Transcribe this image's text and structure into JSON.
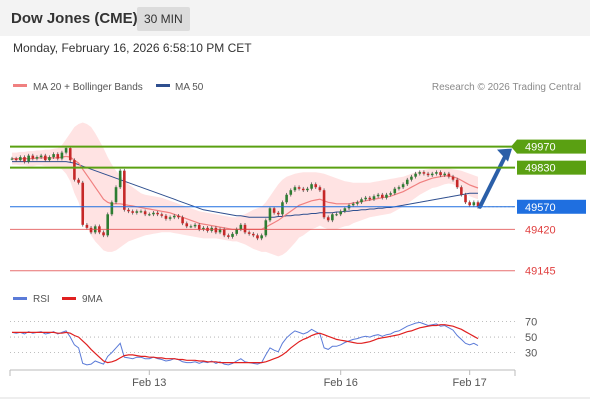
{
  "header": {
    "title": "Dow Jones (CME)",
    "timeframe": "30 MIN",
    "datetime": "Monday, February 16, 2026 6:58:10 PM CET"
  },
  "legend": {
    "ma20_label": "MA 20 + Bollinger Bands",
    "ma50_label": "MA 50",
    "copyright": "Research © 2026 Trading Central"
  },
  "rsi_legend": {
    "rsi_label": "RSI",
    "ma_label": "9MA"
  },
  "colors": {
    "ma20": "#f08080",
    "ma50": "#2f4f8f",
    "bollinger_fill": "#ffe0e0",
    "resistance": "#5aa012",
    "pivot": "#1f6fe0",
    "support": "#e04040",
    "candle_up": "#2e7d32",
    "candle_down": "#c62828",
    "rsi": "#5b7bd8",
    "rsi_ma": "#e02020",
    "arrow": "#2b5fa8"
  },
  "chart_data": [
    {
      "type": "line",
      "name": "price",
      "x_labels": [
        "Feb 13",
        "Feb 16",
        "Feb 17"
      ],
      "ylim": [
        49050,
        50180
      ],
      "levels": [
        {
          "value": 49970,
          "label": "49970",
          "kind": "resistance"
        },
        {
          "value": 49830,
          "label": "49830",
          "kind": "resistance"
        },
        {
          "value": 49570,
          "label": "49570",
          "kind": "pivot"
        },
        {
          "value": 49420,
          "label": "49420",
          "kind": "support"
        },
        {
          "value": 49145,
          "label": "49145",
          "kind": "support"
        }
      ],
      "close": [
        49890,
        49880,
        49900,
        49870,
        49910,
        49890,
        49900,
        49910,
        49880,
        49900,
        49920,
        49890,
        49930,
        49960,
        49880,
        49750,
        49730,
        49450,
        49430,
        49400,
        49440,
        49400,
        49380,
        49520,
        49600,
        49700,
        49810,
        49550,
        49540,
        49530,
        49540,
        49540,
        49520,
        49520,
        49530,
        49520,
        49510,
        49490,
        49500,
        49510,
        49500,
        49460,
        49440,
        49440,
        49450,
        49420,
        49430,
        49410,
        49430,
        49400,
        49420,
        49380,
        49370,
        49390,
        49420,
        49450,
        49400,
        49390,
        49380,
        49360,
        49380,
        49480,
        49560,
        49530,
        49520,
        49600,
        49650,
        49680,
        49700,
        49690,
        49680,
        49690,
        49720,
        49700,
        49680,
        49500,
        49480,
        49520,
        49520,
        49540,
        49560,
        49580,
        49590,
        49600,
        49620,
        49630,
        49620,
        49640,
        49650,
        49630,
        49650,
        49660,
        49690,
        49700,
        49720,
        49750,
        49770,
        49790,
        49800,
        49790,
        49780,
        49790,
        49800,
        49780,
        49790,
        49770,
        49750,
        49700,
        49650,
        49600,
        49580,
        49600,
        49570
      ],
      "ma20": [
        49890,
        49890,
        49890,
        49890,
        49890,
        49890,
        49895,
        49895,
        49895,
        49895,
        49895,
        49895,
        49900,
        49905,
        49900,
        49880,
        49860,
        49820,
        49780,
        49740,
        49700,
        49660,
        49620,
        49600,
        49590,
        49590,
        49590,
        49585,
        49580,
        49575,
        49570,
        49565,
        49560,
        49555,
        49550,
        49545,
        49540,
        49535,
        49530,
        49520,
        49510,
        49500,
        49490,
        49480,
        49470,
        49460,
        49455,
        49450,
        49445,
        49440,
        49435,
        49430,
        49425,
        49420,
        49420,
        49420,
        49420,
        49420,
        49420,
        49420,
        49420,
        49435,
        49450,
        49465,
        49480,
        49500,
        49520,
        49540,
        49560,
        49580,
        49590,
        49600,
        49610,
        49615,
        49620,
        49610,
        49600,
        49595,
        49590,
        49590,
        49590,
        49590,
        49595,
        49600,
        49605,
        49610,
        49615,
        49620,
        49625,
        49630,
        49635,
        49640,
        49650,
        49660,
        49670,
        49685,
        49700,
        49715,
        49730,
        49740,
        49750,
        49760,
        49765,
        49770,
        49775,
        49775,
        49770,
        49760,
        49745,
        49730,
        49715,
        49705,
        49695
      ],
      "ma50": [
        49870,
        49870,
        49870,
        49870,
        49870,
        49870,
        49870,
        49870,
        49870,
        49870,
        49870,
        49870,
        49870,
        49870,
        49865,
        49860,
        49850,
        49840,
        49830,
        49820,
        49810,
        49800,
        49790,
        49780,
        49770,
        49760,
        49750,
        49740,
        49730,
        49720,
        49710,
        49700,
        49690,
        49680,
        49670,
        49660,
        49650,
        49640,
        49630,
        49620,
        49610,
        49600,
        49590,
        49580,
        49570,
        49560,
        49550,
        49545,
        49540,
        49535,
        49530,
        49525,
        49520,
        49515,
        49510,
        49510,
        49505,
        49500,
        49500,
        49500,
        49500,
        49500,
        49500,
        49500,
        49505,
        49505,
        49510,
        49510,
        49515,
        49515,
        49520,
        49520,
        49525,
        49525,
        49530,
        49530,
        49530,
        49530,
        49535,
        49535,
        49540,
        49540,
        49545,
        49545,
        49550,
        49550,
        49555,
        49555,
        49560,
        49560,
        49565,
        49565,
        49570,
        49575,
        49580,
        49585,
        49590,
        49595,
        49600,
        49605,
        49610,
        49615,
        49620,
        49625,
        49630,
        49635,
        49640,
        49645,
        49650,
        49655,
        49660,
        49660,
        49660
      ],
      "bb_upper": [
        49930,
        49930,
        49935,
        49935,
        49940,
        49940,
        49945,
        49945,
        49950,
        49950,
        49955,
        49960,
        49980,
        50020,
        50060,
        50100,
        50120,
        50130,
        50120,
        50100,
        50060,
        50010,
        49960,
        49900,
        49850,
        49810,
        49780,
        49750,
        49720,
        49700,
        49680,
        49660,
        49650,
        49645,
        49640,
        49635,
        49630,
        49620,
        49610,
        49600,
        49590,
        49580,
        49570,
        49560,
        49550,
        49540,
        49535,
        49530,
        49525,
        49520,
        49515,
        49510,
        49505,
        49500,
        49500,
        49510,
        49520,
        49535,
        49550,
        49560,
        49570,
        49600,
        49640,
        49680,
        49720,
        49750,
        49770,
        49780,
        49790,
        49795,
        49800,
        49800,
        49800,
        49800,
        49795,
        49790,
        49780,
        49770,
        49760,
        49750,
        49740,
        49735,
        49730,
        49730,
        49730,
        49730,
        49730,
        49735,
        49740,
        49745,
        49750,
        49755,
        49760,
        49765,
        49770,
        49780,
        49790,
        49800,
        49810,
        49815,
        49820,
        49825,
        49830,
        49830,
        49830,
        49825,
        49820,
        49815,
        49810,
        49800,
        49790,
        49780,
        49770
      ],
      "bb_lower": [
        49850,
        49850,
        49845,
        49845,
        49840,
        49840,
        49845,
        49845,
        49840,
        49840,
        49835,
        49830,
        49820,
        49790,
        49740,
        49660,
        49600,
        49510,
        49440,
        49380,
        49340,
        49310,
        49280,
        49270,
        49270,
        49280,
        49300,
        49320,
        49340,
        49350,
        49360,
        49370,
        49380,
        49385,
        49390,
        49395,
        49400,
        49400,
        49400,
        49395,
        49390,
        49385,
        49380,
        49375,
        49370,
        49365,
        49360,
        49360,
        49360,
        49360,
        49355,
        49350,
        49345,
        49340,
        49340,
        49330,
        49320,
        49305,
        49290,
        49280,
        49270,
        49270,
        49260,
        49250,
        49240,
        49250,
        49270,
        49300,
        49330,
        49365,
        49380,
        49400,
        49420,
        49430,
        49445,
        49430,
        49420,
        49420,
        49420,
        49430,
        49440,
        49445,
        49460,
        49470,
        49480,
        49490,
        49500,
        49505,
        49510,
        49515,
        49520,
        49525,
        49540,
        49555,
        49570,
        49590,
        49610,
        49630,
        49650,
        49665,
        49680,
        49695,
        49700,
        49710,
        49720,
        49725,
        49720,
        49705,
        49680,
        49660,
        49640,
        49630,
        49620
      ]
    },
    {
      "type": "line",
      "name": "rsi",
      "ylim": [
        10,
        85
      ],
      "yticks": [
        70,
        50,
        30
      ],
      "rsi": [
        56,
        55,
        56,
        54,
        57,
        55,
        56,
        57,
        54,
        55,
        57,
        54,
        56,
        58,
        50,
        40,
        36,
        16,
        14,
        15,
        19,
        17,
        15,
        25,
        30,
        36,
        42,
        24,
        23,
        22,
        24,
        24,
        22,
        22,
        24,
        22,
        21,
        19,
        20,
        22,
        21,
        18,
        17,
        17,
        18,
        16,
        18,
        17,
        19,
        16,
        18,
        15,
        14,
        16,
        19,
        22,
        18,
        17,
        16,
        15,
        17,
        27,
        36,
        33,
        31,
        42,
        49,
        54,
        58,
        56,
        54,
        56,
        60,
        57,
        54,
        36,
        34,
        38,
        38,
        40,
        43,
        45,
        47,
        48,
        50,
        51,
        50,
        52,
        53,
        51,
        53,
        54,
        57,
        58,
        61,
        64,
        66,
        68,
        69,
        67,
        65,
        66,
        67,
        64,
        65,
        62,
        59,
        52,
        47,
        42,
        40,
        42,
        39
      ],
      "ma9": [
        56,
        56,
        56,
        56,
        56,
        56,
        56,
        56,
        56,
        56,
        56,
        55,
        55,
        56,
        55,
        52,
        50,
        45,
        40,
        34,
        29,
        24,
        19,
        17,
        18,
        20,
        23,
        26,
        27,
        27,
        26,
        25,
        25,
        24,
        24,
        23,
        23,
        22,
        22,
        22,
        21,
        21,
        20,
        20,
        20,
        19,
        19,
        18,
        18,
        18,
        17,
        17,
        17,
        17,
        17,
        17,
        17,
        17,
        17,
        17,
        17,
        18,
        20,
        22,
        24,
        27,
        31,
        36,
        40,
        44,
        47,
        49,
        52,
        54,
        55,
        53,
        51,
        49,
        47,
        46,
        45,
        44,
        43,
        42,
        42,
        43,
        44,
        46,
        48,
        49,
        50,
        51,
        52,
        53,
        55,
        57,
        58,
        60,
        62,
        63,
        64,
        65,
        65,
        66,
        66,
        65,
        64,
        62,
        60,
        57,
        54,
        51,
        48
      ]
    }
  ]
}
